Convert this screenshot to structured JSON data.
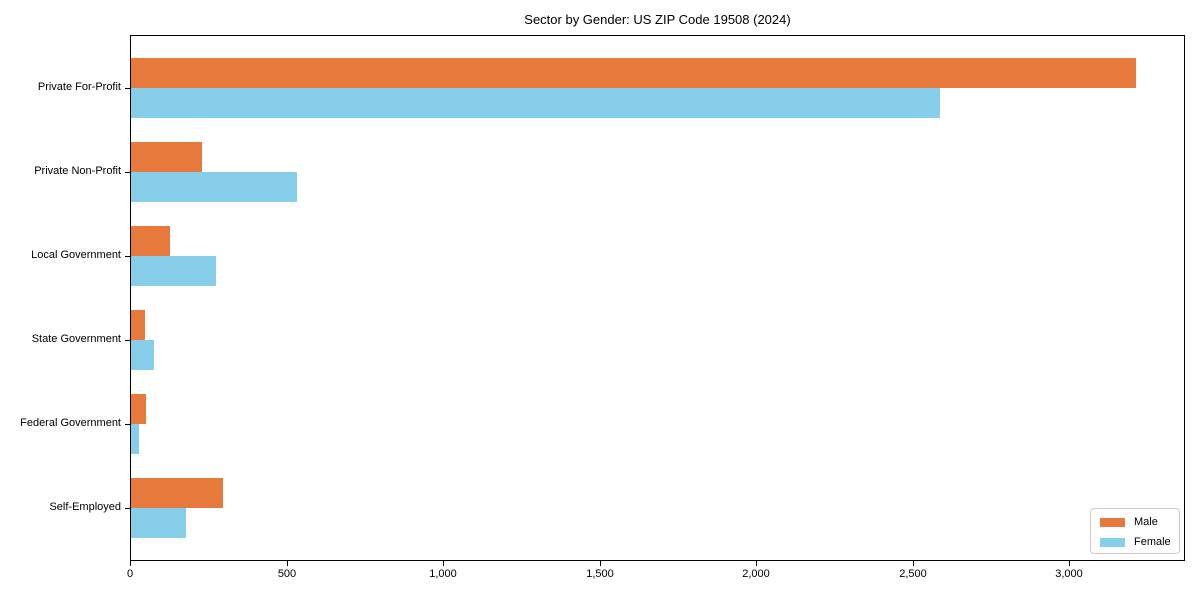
{
  "chart_data": {
    "type": "bar",
    "orientation": "horizontal",
    "title": "Sector by Gender: US ZIP Code 19508 (2024)",
    "categories": [
      "Private For-Profit",
      "Private Non-Profit",
      "Local Government",
      "State Government",
      "Federal Government",
      "Self-Employed"
    ],
    "series": [
      {
        "name": "Male",
        "color": "#E8793D",
        "values": [
          3210,
          227,
          124,
          45,
          47,
          295
        ]
      },
      {
        "name": "Female",
        "color": "#87CEEB",
        "values": [
          2585,
          531,
          273,
          73,
          27,
          175
        ]
      }
    ],
    "xlabel": "",
    "ylabel": "",
    "xlim": [
      0,
      3370
    ],
    "xticks": [
      0,
      500,
      1000,
      1500,
      2000,
      2500,
      3000
    ],
    "xtick_labels": [
      "0",
      "500",
      "1,000",
      "1,500",
      "2,000",
      "2,500",
      "3,000"
    ],
    "grid": false,
    "legend": {
      "position": "lower right",
      "entries": [
        "Male",
        "Female"
      ]
    },
    "colors": {
      "axis": "#000000",
      "text": "#000000",
      "legend_border": "#cccccc"
    }
  }
}
